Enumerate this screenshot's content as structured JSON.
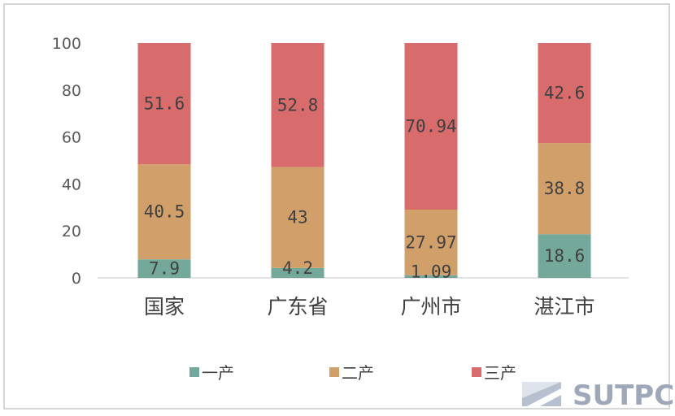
{
  "chart_data": {
    "type": "bar",
    "stacked": true,
    "title": "",
    "xlabel": "",
    "ylabel": "",
    "ylim": [
      0,
      100
    ],
    "yticks": [
      0,
      20,
      40,
      60,
      80,
      100
    ],
    "categories": [
      "国家",
      "广东省",
      "广州市",
      "湛江市"
    ],
    "series": [
      {
        "name": "一产",
        "color": "#73a89a",
        "values": [
          7.9,
          4.2,
          1.09,
          18.6
        ],
        "labels": [
          "7.9",
          "4.2",
          "1.09",
          "18.6"
        ]
      },
      {
        "name": "二产",
        "color": "#d19f69",
        "values": [
          40.5,
          43,
          27.97,
          38.8
        ],
        "labels": [
          "40.5",
          "43",
          "27.97",
          "38.8"
        ]
      },
      {
        "name": "三产",
        "color": "#d86b6b",
        "values": [
          51.6,
          52.8,
          70.94,
          42.6
        ],
        "labels": [
          "51.6",
          "52.8",
          "70.94",
          "42.6"
        ]
      }
    ],
    "legend_position": "bottom",
    "grid": false
  },
  "watermark": {
    "text": "SUTPC"
  }
}
